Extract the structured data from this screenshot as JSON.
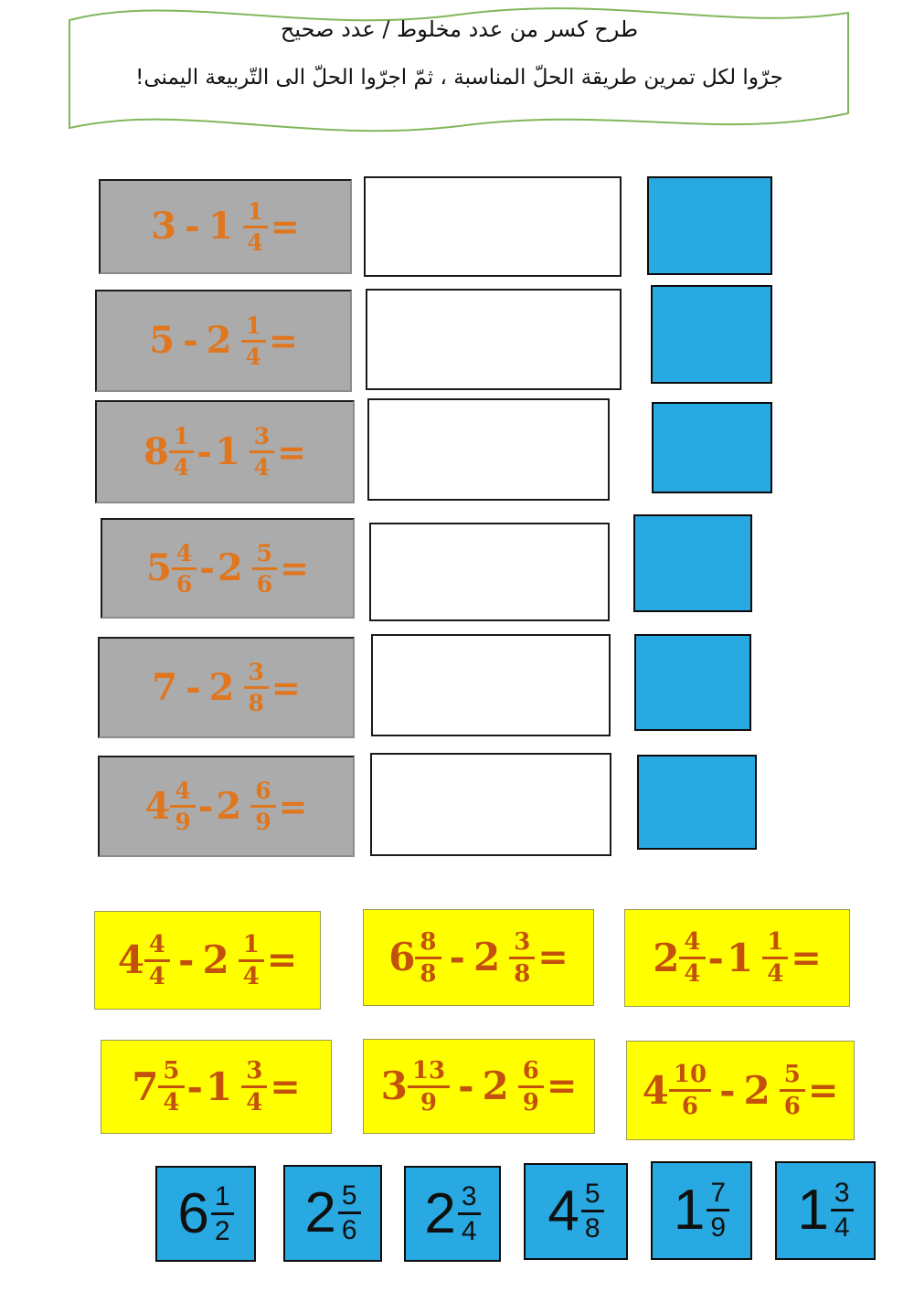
{
  "banner": {
    "title": "طرح كسر من عدد مخلوط / عدد صحيح",
    "instruction": "جرّوا لكل تمرين طريقة الحلّ المناسبة ، ثمّ اجرّوا الحلّ الى التّربيعة اليمنى!"
  },
  "exercises": [
    {
      "a": {
        "whole": "3"
      },
      "op": "-",
      "b": {
        "whole": "1",
        "num": "1",
        "den": "4"
      },
      "eq": "="
    },
    {
      "a": {
        "whole": "5"
      },
      "op": "-",
      "b": {
        "whole": "2",
        "num": "1",
        "den": "4"
      },
      "eq": "="
    },
    {
      "a": {
        "whole": "8",
        "num": "1",
        "den": "4"
      },
      "op": "-",
      "b": {
        "whole": "1",
        "num": "3",
        "den": "4"
      },
      "eq": "="
    },
    {
      "a": {
        "whole": "5",
        "num": "4",
        "den": "6"
      },
      "op": "-",
      "b": {
        "whole": "2",
        "num": "5",
        "den": "6"
      },
      "eq": "="
    },
    {
      "a": {
        "whole": "7"
      },
      "op": "-",
      "b": {
        "whole": "2",
        "num": "3",
        "den": "8"
      },
      "eq": "="
    },
    {
      "a": {
        "whole": "4",
        "num": "4",
        "den": "9"
      },
      "op": "-",
      "b": {
        "whole": "2",
        "num": "6",
        "den": "9"
      },
      "eq": "="
    }
  ],
  "methods": [
    {
      "a": {
        "whole": "4",
        "num": "4",
        "den": "4"
      },
      "op": "-",
      "b": {
        "whole": "2",
        "num": "1",
        "den": "4"
      },
      "eq": "="
    },
    {
      "a": {
        "whole": "6",
        "num": "8",
        "den": "8"
      },
      "op": "-",
      "b": {
        "whole": "2",
        "num": "3",
        "den": "8"
      },
      "eq": "="
    },
    {
      "a": {
        "whole": "2",
        "num": "4",
        "den": "4"
      },
      "op": "-",
      "b": {
        "whole": "1",
        "num": "1",
        "den": "4"
      },
      "eq": "="
    },
    {
      "a": {
        "whole": "7",
        "num": "5",
        "den": "4"
      },
      "op": "-",
      "b": {
        "whole": "1",
        "num": "3",
        "den": "4"
      },
      "eq": "="
    },
    {
      "a": {
        "whole": "3",
        "num": "13",
        "den": "9"
      },
      "op": "-",
      "b": {
        "whole": "2",
        "num": "6",
        "den": "9"
      },
      "eq": "="
    },
    {
      "a": {
        "whole": "4",
        "num": "10",
        "den": "6"
      },
      "op": "-",
      "b": {
        "whole": "2",
        "num": "5",
        "den": "6"
      },
      "eq": "="
    }
  ],
  "answers": [
    {
      "whole": "6",
      "num": "1",
      "den": "2"
    },
    {
      "whole": "2",
      "num": "5",
      "den": "6"
    },
    {
      "whole": "2",
      "num": "3",
      "den": "4"
    },
    {
      "whole": "4",
      "num": "5",
      "den": "8"
    },
    {
      "whole": "1",
      "num": "7",
      "den": "9"
    },
    {
      "whole": "1",
      "num": "3",
      "den": "4"
    }
  ],
  "colors": {
    "exercise_card_bg": "#ababab",
    "exercise_text": "#e0761e",
    "method_card_bg": "#ffff00",
    "method_text": "#c4510b",
    "answer_card_bg": "#29a9e1",
    "answer_text": "#101010",
    "banner_border": "#7fb75a"
  }
}
